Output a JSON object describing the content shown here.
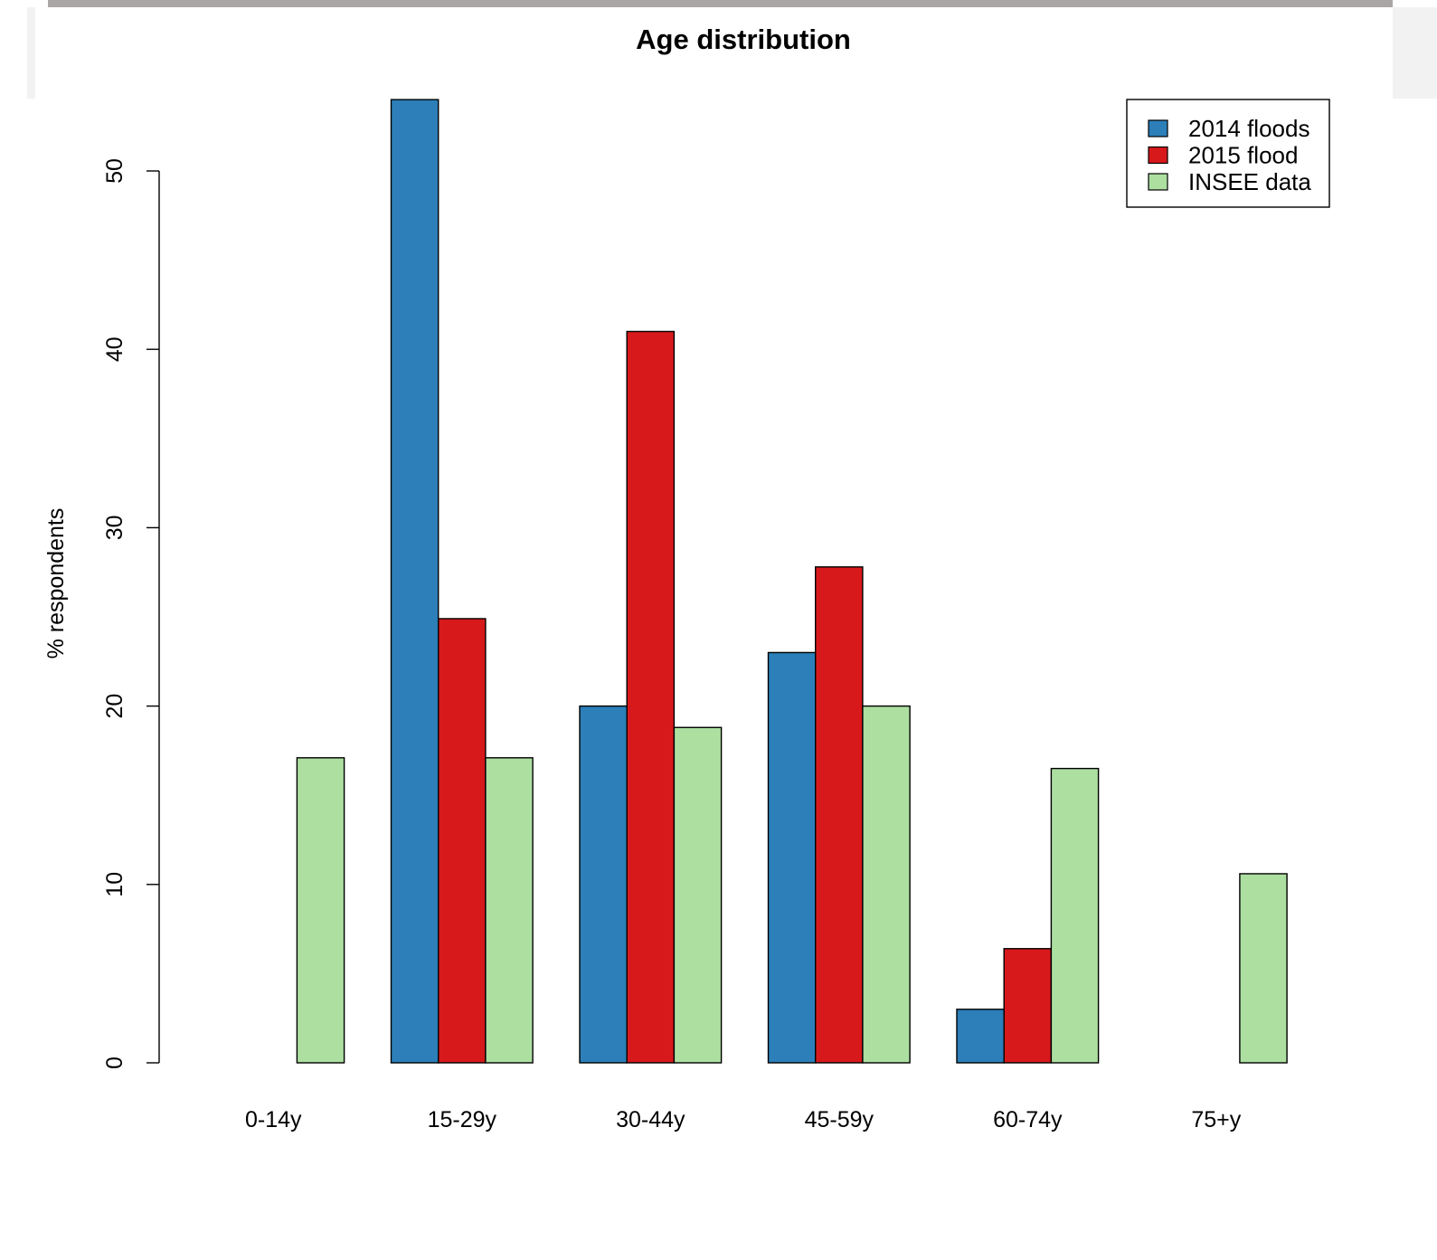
{
  "chart_data": {
    "type": "bar",
    "title": "Age distribution",
    "xlabel": "",
    "ylabel": "% respondents",
    "ylim": [
      0,
      54
    ],
    "yticks": [
      0,
      10,
      20,
      30,
      40,
      50
    ],
    "categories": [
      "0-14y",
      "15-29y",
      "30-44y",
      "45-59y",
      "60-74y",
      "75+y"
    ],
    "series": [
      {
        "name": "2014 floods",
        "color": "#2c7fb8",
        "values": [
          0,
          54,
          20,
          23,
          3,
          0
        ]
      },
      {
        "name": "2015 flood",
        "color": "#d7191c",
        "values": [
          0,
          24.9,
          41,
          27.8,
          6.4,
          0
        ]
      },
      {
        "name": "INSEE data",
        "color": "#addfa1",
        "values": [
          17.1,
          17.1,
          18.8,
          20,
          16.5,
          10.6
        ]
      }
    ],
    "legend_position": "top-right",
    "grid": false
  }
}
